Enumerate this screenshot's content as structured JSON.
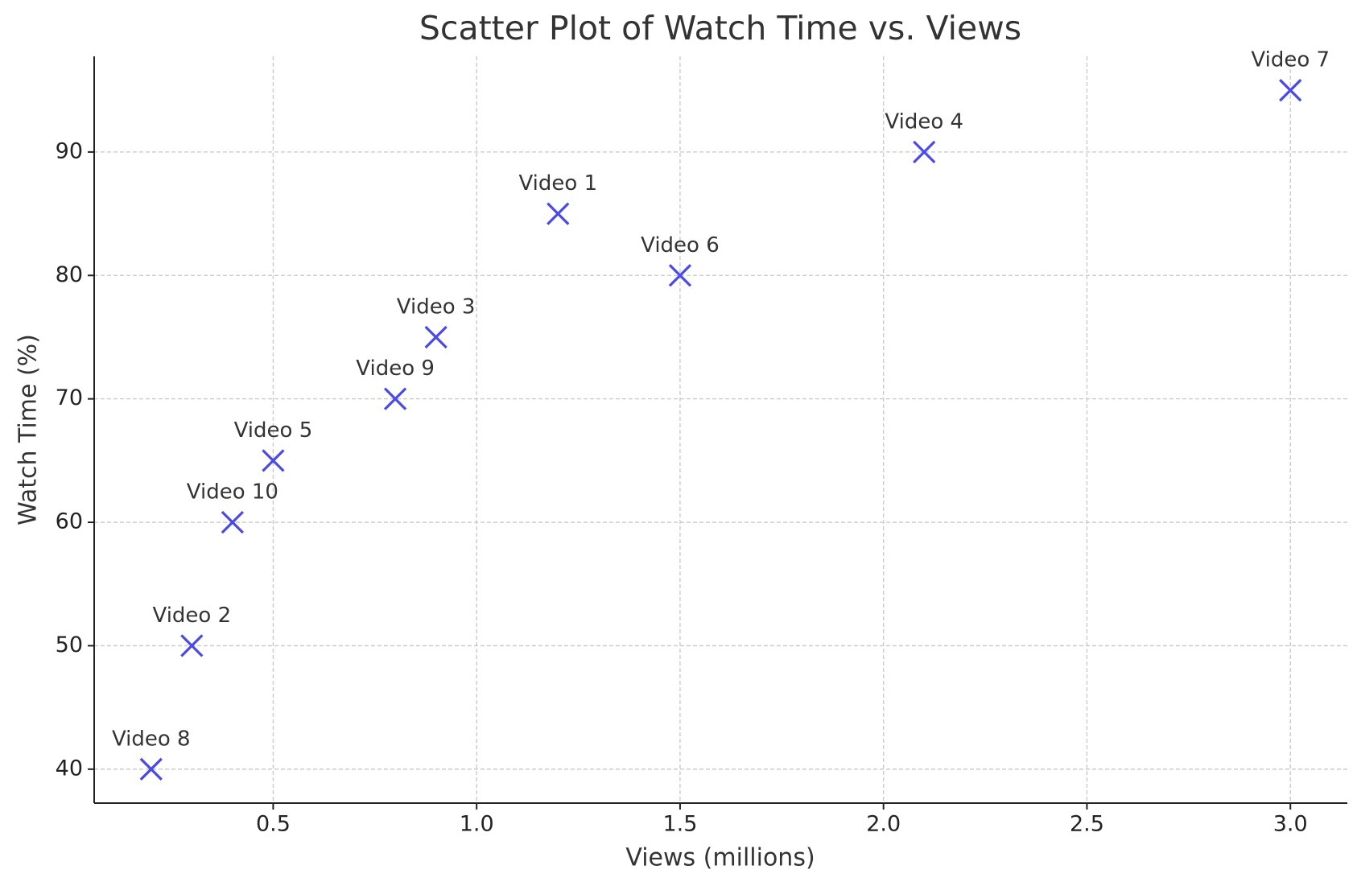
{
  "chart_data": {
    "type": "scatter",
    "title": "Scatter Plot of Watch Time vs. Views",
    "x_label": "Views (millions)",
    "y_label": "Watch Time (%)",
    "x": [
      1.2,
      0.3,
      0.9,
      2.1,
      0.5,
      1.5,
      3.0,
      0.2,
      0.8,
      0.4
    ],
    "y": [
      85,
      50,
      75,
      90,
      65,
      80,
      95,
      40,
      70,
      60
    ],
    "point_labels": [
      "Video 1",
      "Video 2",
      "Video 3",
      "Video 4",
      "Video 5",
      "Video 6",
      "Video 7",
      "Video 8",
      "Video 9",
      "Video 10"
    ],
    "color": "#4a4ae6",
    "marker": "x",
    "xlim": [
      0.06,
      3.14
    ],
    "ylim": [
      37.25,
      97.75
    ],
    "xticks": [
      0.5,
      {
        "value": 1,
        "label": "1.0"
      },
      1.5,
      {
        "value": 2,
        "label": "2.0"
      },
      2.5,
      {
        "value": 3,
        "label": "3.0"
      }
    ],
    "yticks": [
      40,
      50,
      60,
      70,
      80,
      90
    ],
    "grid": true
  }
}
